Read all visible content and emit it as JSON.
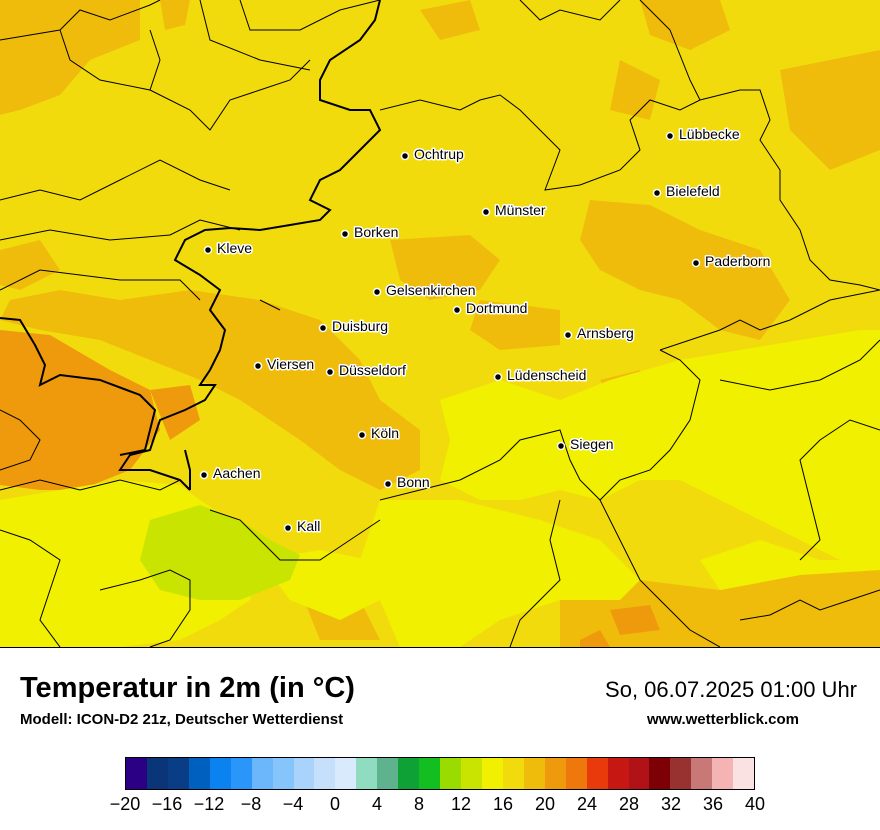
{
  "map": {
    "cities": [
      {
        "name": "Ochtrup"
      },
      {
        "name": "Lübbecke"
      },
      {
        "name": "Bielefeld"
      },
      {
        "name": "Münster"
      },
      {
        "name": "Borken"
      },
      {
        "name": "Kleve"
      },
      {
        "name": "Paderborn"
      },
      {
        "name": "Gelsenkirchen"
      },
      {
        "name": "Dortmund"
      },
      {
        "name": "Duisburg"
      },
      {
        "name": "Arnsberg"
      },
      {
        "name": "Viersen"
      },
      {
        "name": "Düsseldorf"
      },
      {
        "name": "Lüdenscheid"
      },
      {
        "name": "Köln"
      },
      {
        "name": "Siegen"
      },
      {
        "name": "Aachen"
      },
      {
        "name": "Bonn"
      },
      {
        "name": "Kall"
      }
    ],
    "colors": {
      "band_16_18": "#f2db0c",
      "band_18_20": "#f0bc0c",
      "band_14_16": "#f0f000",
      "band_12_14": "#c8e400",
      "band_20_22": "#ef9a0c"
    }
  },
  "header": {
    "title": "Temperatur in 2m (in °C)",
    "subtitle": "Modell: ICON-D2 21z, Deutscher Wetterdienst",
    "datetime": "So, 06.07.2025 01:00 Uhr",
    "website": "www.wetterblick.com"
  },
  "legend": {
    "colors": [
      "#2c0085",
      "#0a3578",
      "#093e86",
      "#0060c0",
      "#0a82f0",
      "#2b96fa",
      "#6cb6fb",
      "#86c4fc",
      "#aad3fc",
      "#c6e0fb",
      "#d8eafc",
      "#8fdcc0",
      "#5fb28e",
      "#0ea236",
      "#13bf20",
      "#9bdc00",
      "#c8e400",
      "#f0f000",
      "#f2db0c",
      "#f0bc0c",
      "#ef9a0c",
      "#ee780c",
      "#e83a0b",
      "#c61712",
      "#b01217",
      "#7d0006",
      "#973230",
      "#c77877",
      "#f4b4b4",
      "#fbe2e2"
    ],
    "tick_labels": [
      "−20",
      "−16",
      "−12",
      "−8",
      "−4",
      "0",
      "4",
      "8",
      "12",
      "16",
      "20",
      "24",
      "28",
      "32",
      "36",
      "40"
    ]
  }
}
